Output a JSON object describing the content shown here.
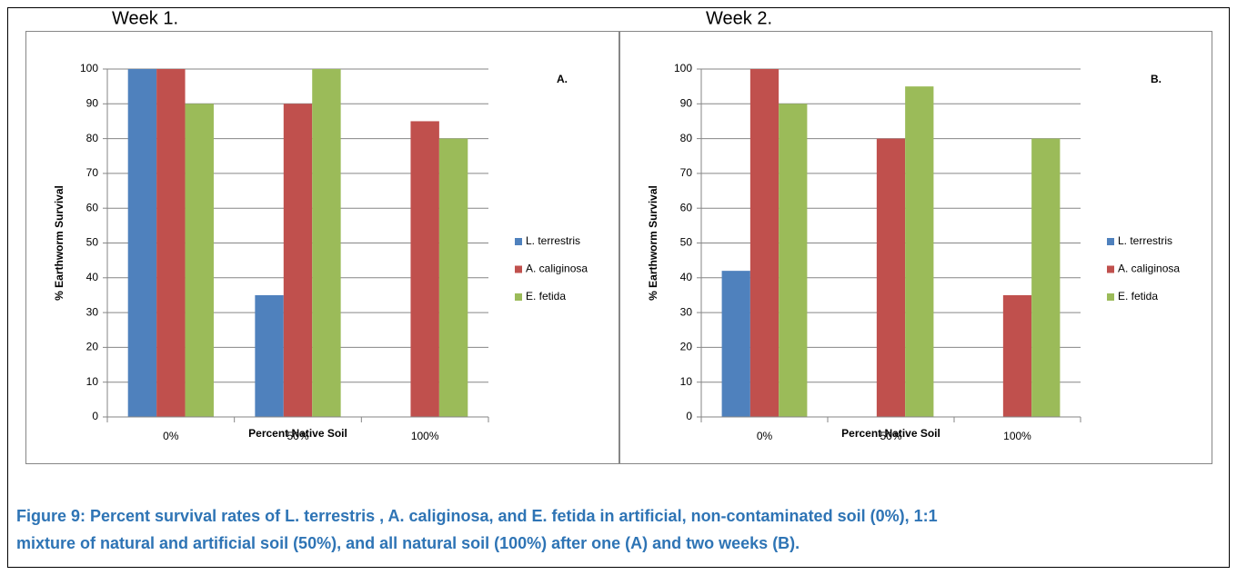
{
  "chart_data": [
    {
      "type": "bar",
      "title": "Week 1.",
      "annotation": "A.",
      "x_label": "Percent Native Soil",
      "y_label": "% Earthworm Survival",
      "categories": [
        "0%",
        "50%",
        "100%"
      ],
      "series": [
        {
          "name": "L. terrestris",
          "color": "#4f81bd",
          "values": [
            100,
            35,
            0
          ]
        },
        {
          "name": "A. caliginosa",
          "color": "#c0504d",
          "values": [
            100,
            90,
            85
          ]
        },
        {
          "name": "E. fetida",
          "color": "#9bbb59",
          "values": [
            90,
            100,
            80
          ]
        }
      ],
      "ylim": [
        0,
        100
      ],
      "yticks": [
        0,
        10,
        20,
        30,
        40,
        50,
        60,
        70,
        80,
        90,
        100
      ],
      "grid": true,
      "legend": "right"
    },
    {
      "type": "bar",
      "title": "Week 2.",
      "annotation": "B.",
      "x_label": "Percent Native Soil",
      "y_label": "% Earthworm Survival",
      "categories": [
        "0%",
        "50%",
        "100%"
      ],
      "series": [
        {
          "name": "L. terrestris",
          "color": "#4f81bd",
          "values": [
            42,
            0,
            0
          ]
        },
        {
          "name": "A. caliginosa",
          "color": "#c0504d",
          "values": [
            100,
            80,
            35
          ]
        },
        {
          "name": "E. fetida",
          "color": "#9bbb59",
          "values": [
            90,
            95,
            80
          ]
        }
      ],
      "ylim": [
        0,
        100
      ],
      "yticks": [
        0,
        10,
        20,
        30,
        40,
        50,
        60,
        70,
        80,
        90,
        100
      ],
      "grid": true,
      "legend": "right"
    }
  ],
  "caption": [
    "Figure 9: Percent survival rates of L. terrestris , A. caliginosa, and E. fetida in artificial, non-contaminated soil (0%), 1:1",
    "mixture of natural and artificial soil (50%), and all natural soil (100%) after one (A) and two weeks (B)."
  ]
}
